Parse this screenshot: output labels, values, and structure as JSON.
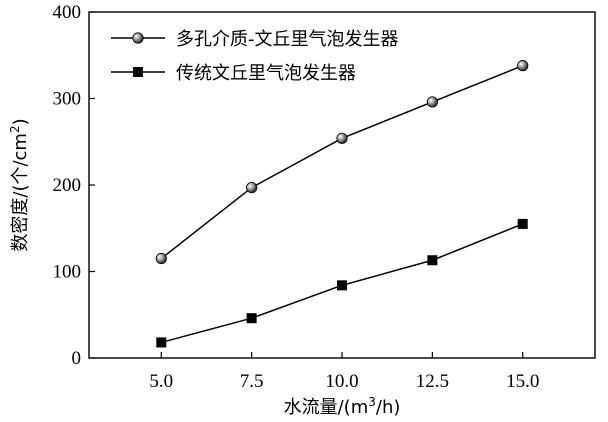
{
  "chart_data": {
    "type": "line",
    "x": [
      5.0,
      7.5,
      10.0,
      12.5,
      15.0
    ],
    "x_tick_labels": [
      "5.0",
      "7.5",
      "10.0",
      "12.5",
      "15.0"
    ],
    "y_ticks": [
      0,
      100,
      200,
      300,
      400
    ],
    "xlabel": {
      "text": "水流量/(m",
      "sup": "3",
      "tail": "/h)"
    },
    "ylabel": {
      "text": "数密度/(个/cm",
      "sup": "2",
      "tail": ")"
    },
    "xlim": [
      3.0,
      17.0
    ],
    "ylim": [
      0,
      400
    ],
    "grid": false,
    "legend_position": "top-left",
    "series": [
      {
        "name": "多孔介质-文丘里气泡发生器",
        "marker": "circle",
        "color": "#000000",
        "values": [
          115,
          197,
          254,
          296,
          338
        ]
      },
      {
        "name": "传统文丘里气泡发生器",
        "marker": "square",
        "color": "#000000",
        "values": [
          18,
          46,
          84,
          113,
          155
        ]
      }
    ]
  }
}
